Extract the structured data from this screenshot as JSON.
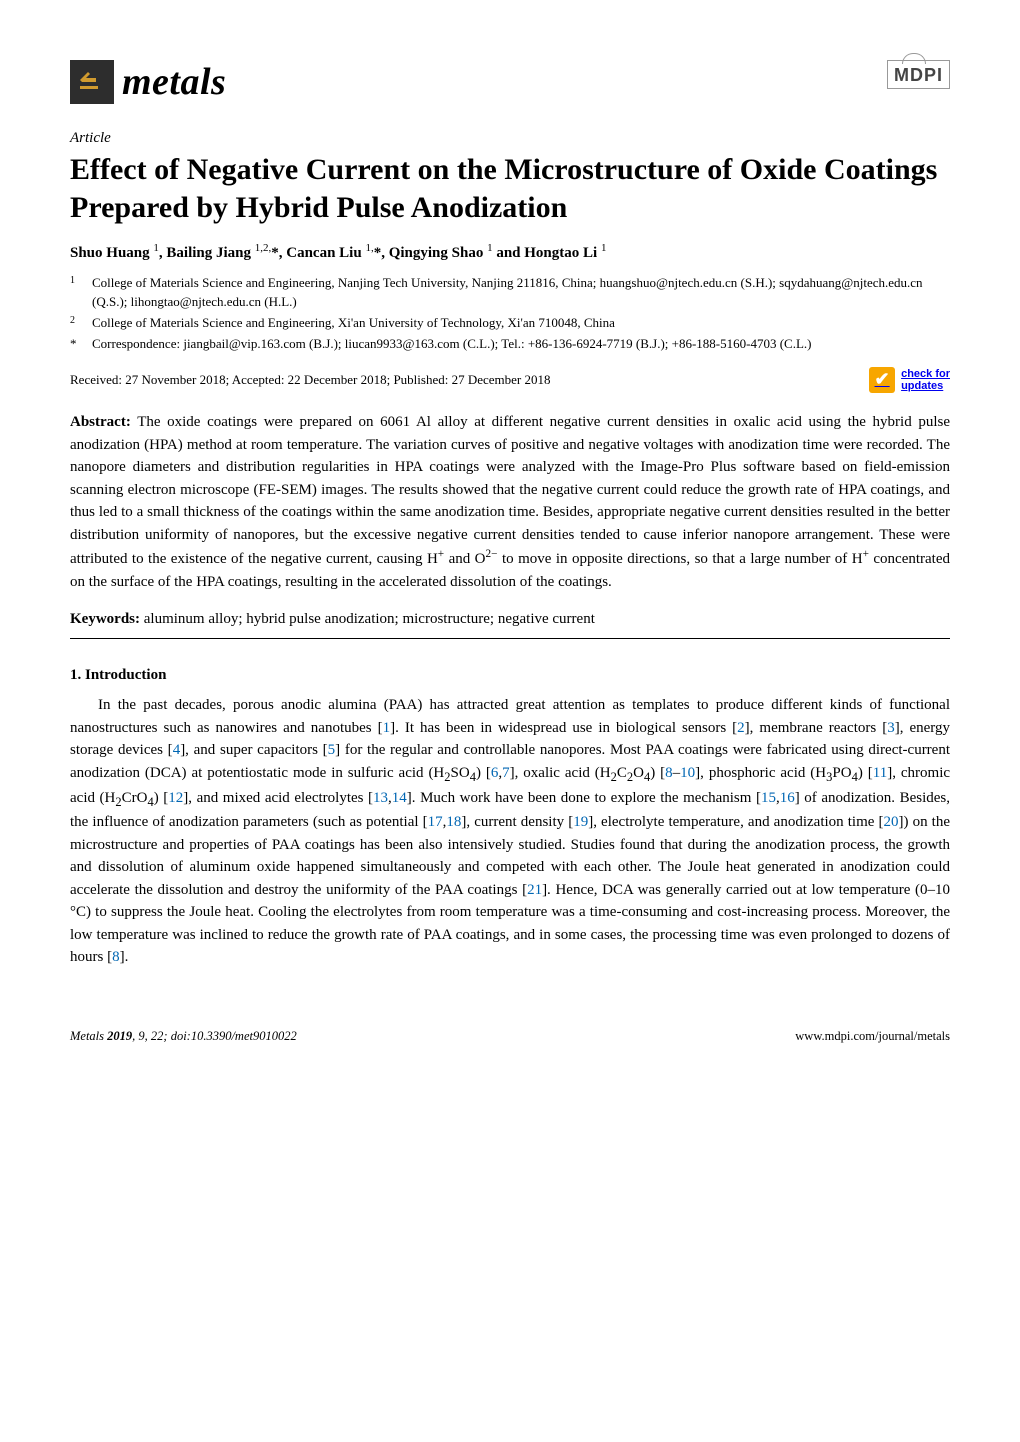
{
  "journal": {
    "name": "metals",
    "publisher": "MDPI"
  },
  "article": {
    "type": "Article",
    "title": "Effect of Negative Current on the Microstructure of Oxide Coatings Prepared by Hybrid Pulse Anodization",
    "authors_html": "Shuo Huang <sup>1</sup>, Bailing Jiang <sup>1,2,</sup>*, Cancan Liu <sup>1,</sup>*, Qingying Shao <sup>1</sup> and Hongtao Li <sup>1</sup>",
    "affiliations": [
      {
        "num": "1",
        "text": "College of Materials Science and Engineering, Nanjing Tech University, Nanjing 211816, China; huangshuo@njtech.edu.cn (S.H.); sqydahuang@njtech.edu.cn (Q.S.); lihongtao@njtech.edu.cn (H.L.)"
      },
      {
        "num": "2",
        "text": "College of Materials Science and Engineering, Xi'an University of Technology, Xi'an 710048, China"
      },
      {
        "num": "*",
        "text": "Correspondence: jiangbail@vip.163.com (B.J.); liucan9933@163.com (C.L.); Tel.: +86-136-6924-7719 (B.J.); +86-188-5160-4703 (C.L.)"
      }
    ],
    "dates": "Received: 27 November 2018; Accepted: 22 December 2018; Published: 27 December 2018",
    "check_updates": "check for\nupdates",
    "abstract_label": "Abstract:",
    "abstract_html": "The oxide coatings were prepared on 6061 Al alloy at different negative current densities in oxalic acid using the hybrid pulse anodization (HPA) method at room temperature. The variation curves of positive and negative voltages with anodization time were recorded. The nanopore diameters and distribution regularities in HPA coatings were analyzed with the Image-Pro Plus software based on field-emission scanning electron microscope (FE-SEM) images. The results showed that the negative current could reduce the growth rate of HPA coatings, and thus led to a small thickness of the coatings within the same anodization time. Besides, appropriate negative current densities resulted in the better distribution uniformity of nanopores, but the excessive negative current densities tended to cause inferior nanopore arrangement. These were attributed to the existence of the negative current, causing H<sup>+</sup> and O<sup>2−</sup> to move in opposite directions, so that a large number of H<sup>+</sup> concentrated on the surface of the HPA coatings, resulting in the accelerated dissolution of the coatings.",
    "keywords_label": "Keywords:",
    "keywords": "aluminum alloy; hybrid pulse anodization; microstructure; negative current",
    "section1_heading": "1. Introduction",
    "section1_body_html": "In the past decades, porous anodic alumina (PAA) has attracted great attention as templates to produce different kinds of functional nanostructures such as nanowires and nanotubes [<span class=\"ref\">1</span>]. It has been in widespread use in biological sensors [<span class=\"ref\">2</span>], membrane reactors [<span class=\"ref\">3</span>], energy storage devices [<span class=\"ref\">4</span>], and super capacitors [<span class=\"ref\">5</span>] for the regular and controllable nanopores. Most PAA coatings were fabricated using direct-current anodization (DCA) at potentiostatic mode in sulfuric acid (H<sub>2</sub>SO<sub>4</sub>) [<span class=\"ref\">6</span>,<span class=\"ref\">7</span>], oxalic acid (H<sub>2</sub>C<sub>2</sub>O<sub>4</sub>) [<span class=\"ref\">8</span>–<span class=\"ref\">10</span>], phosphoric acid (H<sub>3</sub>PO<sub>4</sub>) [<span class=\"ref\">11</span>], chromic acid (H<sub>2</sub>CrO<sub>4</sub>) [<span class=\"ref\">12</span>], and mixed acid electrolytes [<span class=\"ref\">13</span>,<span class=\"ref\">14</span>]. Much work have been done to explore the mechanism [<span class=\"ref\">15</span>,<span class=\"ref\">16</span>] of anodization. Besides, the influence of anodization parameters (such as potential [<span class=\"ref\">17</span>,<span class=\"ref\">18</span>], current density [<span class=\"ref\">19</span>], electrolyte temperature, and anodization time [<span class=\"ref\">20</span>]) on the microstructure and properties of PAA coatings has been also intensively studied. Studies found that during the anodization process, the growth and dissolution of aluminum oxide happened simultaneously and competed with each other. The Joule heat generated in anodization could accelerate the dissolution and destroy the uniformity of the PAA coatings [<span class=\"ref\">21</span>]. Hence, DCA was generally carried out at low temperature (0–10 °C) to suppress the Joule heat. Cooling the electrolytes from room temperature was a time-consuming and cost-increasing process. Moreover, the low temperature was inclined to reduce the growth rate of PAA coatings, and in some cases, the processing time was even prolonged to dozens of hours [<span class=\"ref\">8</span>]."
  },
  "footer": {
    "left_html": "<i>Metals</i> <b>2019</b>, <i>9</i>, 22; doi:10.3390/met9010022",
    "right": "www.mdpi.com/journal/metals"
  },
  "colors": {
    "link": "#0066b3",
    "badge": "#f7a600",
    "logo_bg": "#2d2d2d",
    "logo_accent": "#d19b2f"
  }
}
